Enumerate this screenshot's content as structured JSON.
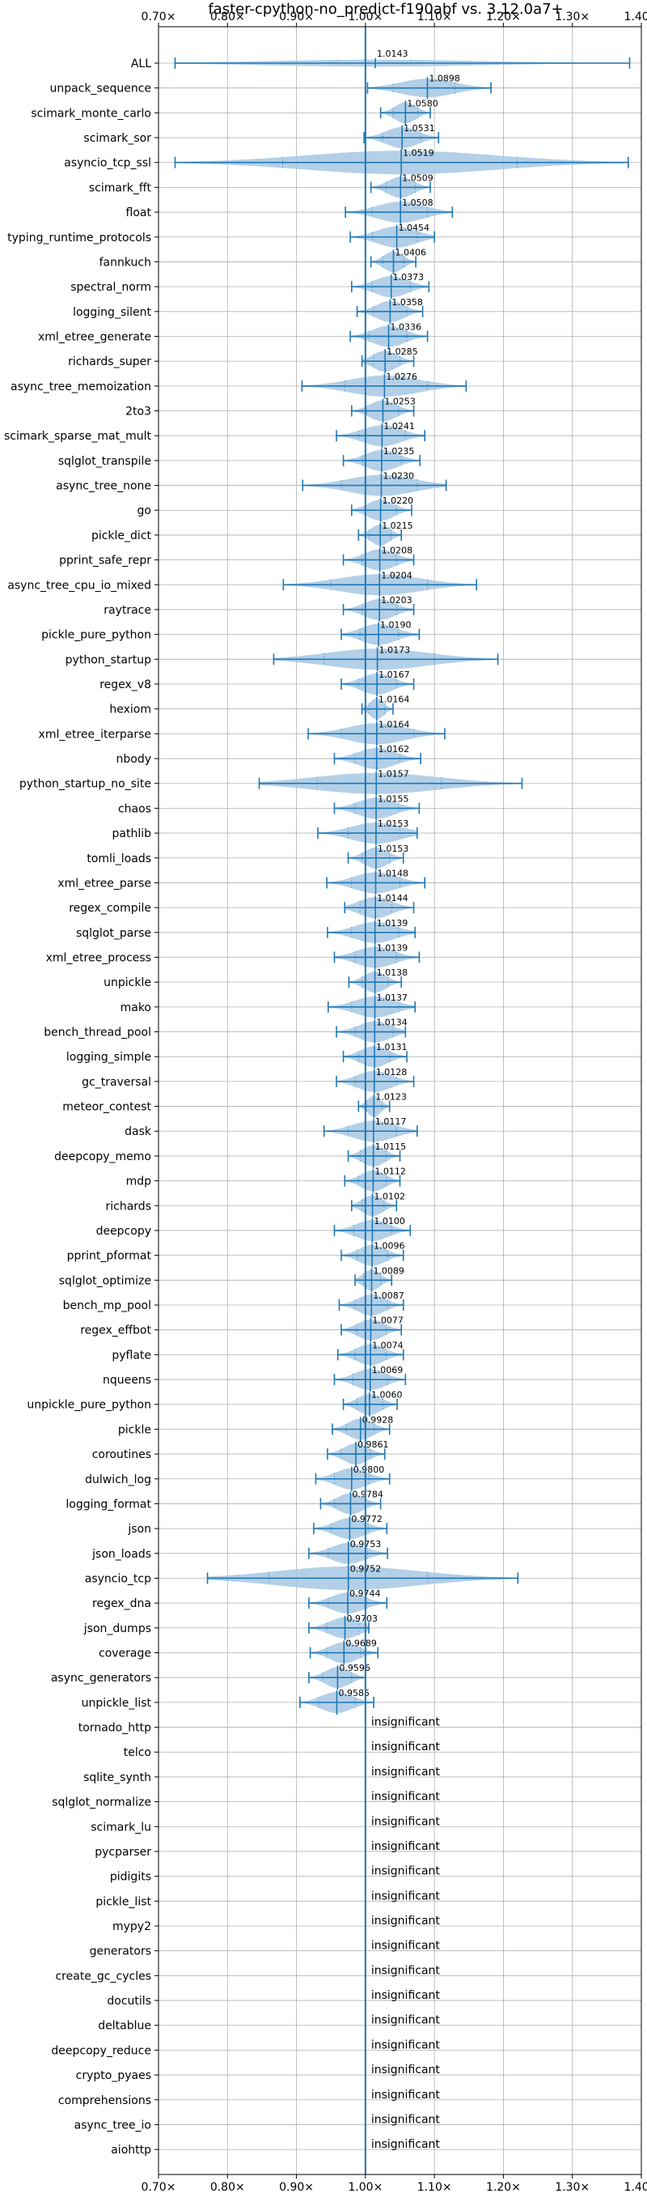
{
  "chart_data": {
    "type": "violin",
    "title": "faster-cpython-no_predict-f190abf vs. 3.12.0a7+",
    "xlim": [
      0.7,
      1.4
    ],
    "xticks": [
      0.7,
      0.8,
      0.9,
      1.0,
      1.1,
      1.2,
      1.3,
      1.4
    ],
    "xtick_labels": [
      "0.70×",
      "0.80×",
      "0.90×",
      "1.00×",
      "1.10×",
      "1.20×",
      "1.30×",
      "1.40×"
    ],
    "reference_line": 1.0,
    "grid": true,
    "insignificant_label": "insignificant",
    "color": "#1f77b4",
    "violin_color": "#a6c8e4",
    "benchmarks": [
      {
        "name": "ALL",
        "mean": 1.0143,
        "label": "1.0143",
        "min": 0.724,
        "max": 1.383,
        "q1": 0.96,
        "q3": 1.066,
        "width": 0.28
      },
      {
        "name": "unpack_sequence",
        "mean": 1.0898,
        "label": "1.0898",
        "min": 1.003,
        "max": 1.182,
        "q1": 1.04,
        "q3": 1.13,
        "width": 0.75
      },
      {
        "name": "scimark_monte_carlo",
        "mean": 1.058,
        "label": "1.0580",
        "min": 1.022,
        "max": 1.094,
        "q1": 1.04,
        "q3": 1.076,
        "width": 0.85
      },
      {
        "name": "scimark_sor",
        "mean": 1.0531,
        "label": "1.0531",
        "min": 0.998,
        "max": 1.106,
        "q1": 1.025,
        "q3": 1.08,
        "width": 0.85
      },
      {
        "name": "asyncio_tcp_ssl",
        "mean": 1.0519,
        "label": "1.0519",
        "min": 0.724,
        "max": 1.381,
        "q1": 0.88,
        "q3": 1.22,
        "width": 0.95
      },
      {
        "name": "scimark_fft",
        "mean": 1.0509,
        "label": "1.0509",
        "min": 1.008,
        "max": 1.094,
        "q1": 1.03,
        "q3": 1.072,
        "width": 0.85
      },
      {
        "name": "float",
        "mean": 1.0508,
        "label": "1.0508",
        "min": 0.971,
        "max": 1.126,
        "q1": 1.01,
        "q3": 1.09,
        "width": 0.85
      },
      {
        "name": "typing_runtime_protocols",
        "mean": 1.0454,
        "label": "1.0454",
        "min": 0.978,
        "max": 1.1,
        "q1": 1.01,
        "q3": 1.075,
        "width": 0.85
      },
      {
        "name": "fannkuch",
        "mean": 1.0406,
        "label": "1.0406",
        "min": 1.008,
        "max": 1.073,
        "q1": 1.025,
        "q3": 1.056,
        "width": 0.85
      },
      {
        "name": "spectral_norm",
        "mean": 1.0373,
        "label": "1.0373",
        "min": 0.98,
        "max": 1.092,
        "q1": 1.01,
        "q3": 1.065,
        "width": 0.85
      },
      {
        "name": "logging_silent",
        "mean": 1.0358,
        "label": "1.0358",
        "min": 0.988,
        "max": 1.083,
        "q1": 1.012,
        "q3": 1.06,
        "width": 0.85
      },
      {
        "name": "xml_etree_generate",
        "mean": 1.0336,
        "label": "1.0336",
        "min": 0.978,
        "max": 1.09,
        "q1": 1.005,
        "q3": 1.06,
        "width": 0.85
      },
      {
        "name": "richards_super",
        "mean": 1.0285,
        "label": "1.0285",
        "min": 0.995,
        "max": 1.07,
        "q1": 1.012,
        "q3": 1.05,
        "width": 0.85
      },
      {
        "name": "async_tree_memoization",
        "mean": 1.0276,
        "label": "1.0276",
        "min": 0.908,
        "max": 1.146,
        "q1": 0.97,
        "q3": 1.09,
        "width": 0.85
      },
      {
        "name": "2to3",
        "mean": 1.0253,
        "label": "1.0253",
        "min": 0.98,
        "max": 1.07,
        "q1": 1.002,
        "q3": 1.048,
        "width": 0.85
      },
      {
        "name": "scimark_sparse_mat_mult",
        "mean": 1.0241,
        "label": "1.0241",
        "min": 0.958,
        "max": 1.086,
        "q1": 0.99,
        "q3": 1.058,
        "width": 0.85
      },
      {
        "name": "sqlglot_transpile",
        "mean": 1.0235,
        "label": "1.0235",
        "min": 0.968,
        "max": 1.079,
        "q1": 0.996,
        "q3": 1.052,
        "width": 0.85
      },
      {
        "name": "async_tree_none",
        "mean": 1.023,
        "label": "1.0230",
        "min": 0.909,
        "max": 1.117,
        "q1": 0.965,
        "q3": 1.075,
        "width": 0.85
      },
      {
        "name": "go",
        "mean": 1.022,
        "label": "1.0220",
        "min": 0.98,
        "max": 1.067,
        "q1": 1.0,
        "q3": 1.045,
        "width": 0.85
      },
      {
        "name": "pickle_dict",
        "mean": 1.0215,
        "label": "1.0215",
        "min": 0.99,
        "max": 1.052,
        "q1": 1.006,
        "q3": 1.037,
        "width": 0.85
      },
      {
        "name": "pprint_safe_repr",
        "mean": 1.0208,
        "label": "1.0208",
        "min": 0.968,
        "max": 1.07,
        "q1": 0.995,
        "q3": 1.045,
        "width": 0.85
      },
      {
        "name": "async_tree_cpu_io_mixed",
        "mean": 1.0204,
        "label": "1.0204",
        "min": 0.881,
        "max": 1.161,
        "q1": 0.95,
        "q3": 1.09,
        "width": 0.85
      },
      {
        "name": "raytrace",
        "mean": 1.0203,
        "label": "1.0203",
        "min": 0.968,
        "max": 1.07,
        "q1": 0.995,
        "q3": 1.045,
        "width": 0.85
      },
      {
        "name": "pickle_pure_python",
        "mean": 1.019,
        "label": "1.0190",
        "min": 0.965,
        "max": 1.078,
        "q1": 0.992,
        "q3": 1.048,
        "width": 0.85
      },
      {
        "name": "python_startup",
        "mean": 1.0173,
        "label": "1.0173",
        "min": 0.867,
        "max": 1.192,
        "q1": 0.94,
        "q3": 1.1,
        "width": 0.85
      },
      {
        "name": "regex_v8",
        "mean": 1.0167,
        "label": "1.0167",
        "min": 0.965,
        "max": 1.07,
        "q1": 0.99,
        "q3": 1.045,
        "width": 0.85
      },
      {
        "name": "hexiom",
        "mean": 1.0164,
        "label": "1.0164",
        "min": 0.995,
        "max": 1.04,
        "q1": 1.006,
        "q3": 1.028,
        "width": 0.85
      },
      {
        "name": "xml_etree_iterparse",
        "mean": 1.0164,
        "label": "1.0164",
        "min": 0.917,
        "max": 1.115,
        "q1": 0.965,
        "q3": 1.07,
        "width": 0.85
      },
      {
        "name": "nbody",
        "mean": 1.0162,
        "label": "1.0162",
        "min": 0.955,
        "max": 1.08,
        "q1": 0.985,
        "q3": 1.05,
        "width": 0.85
      },
      {
        "name": "python_startup_no_site",
        "mean": 1.0157,
        "label": "1.0157",
        "min": 0.846,
        "max": 1.227,
        "q1": 0.93,
        "q3": 1.11,
        "width": 0.85
      },
      {
        "name": "chaos",
        "mean": 1.0155,
        "label": "1.0155",
        "min": 0.955,
        "max": 1.078,
        "q1": 0.985,
        "q3": 1.048,
        "width": 0.85
      },
      {
        "name": "pathlib",
        "mean": 1.0153,
        "label": "1.0153",
        "min": 0.931,
        "max": 1.075,
        "q1": 0.975,
        "q3": 1.05,
        "width": 0.85
      },
      {
        "name": "tomli_loads",
        "mean": 1.0153,
        "label": "1.0153",
        "min": 0.975,
        "max": 1.055,
        "q1": 0.995,
        "q3": 1.035,
        "width": 0.85
      },
      {
        "name": "xml_etree_parse",
        "mean": 1.0148,
        "label": "1.0148",
        "min": 0.944,
        "max": 1.086,
        "q1": 0.98,
        "q3": 1.05,
        "width": 0.85
      },
      {
        "name": "regex_compile",
        "mean": 1.0144,
        "label": "1.0144",
        "min": 0.97,
        "max": 1.07,
        "q1": 0.992,
        "q3": 1.038,
        "width": 0.85
      },
      {
        "name": "sqlglot_parse",
        "mean": 1.0139,
        "label": "1.0139",
        "min": 0.945,
        "max": 1.072,
        "q1": 0.98,
        "q3": 1.048,
        "width": 0.85
      },
      {
        "name": "xml_etree_process",
        "mean": 1.0139,
        "label": "1.0139",
        "min": 0.955,
        "max": 1.078,
        "q1": 0.985,
        "q3": 1.045,
        "width": 0.85
      },
      {
        "name": "unpickle",
        "mean": 1.0138,
        "label": "1.0138",
        "min": 0.976,
        "max": 1.052,
        "q1": 0.995,
        "q3": 1.033,
        "width": 0.85
      },
      {
        "name": "mako",
        "mean": 1.0137,
        "label": "1.0137",
        "min": 0.946,
        "max": 1.072,
        "q1": 0.98,
        "q3": 1.048,
        "width": 0.85
      },
      {
        "name": "bench_thread_pool",
        "mean": 1.0134,
        "label": "1.0134",
        "min": 0.958,
        "max": 1.058,
        "q1": 0.985,
        "q3": 1.04,
        "width": 0.85
      },
      {
        "name": "logging_simple",
        "mean": 1.0131,
        "label": "1.0131",
        "min": 0.968,
        "max": 1.06,
        "q1": 0.99,
        "q3": 1.035,
        "width": 0.85
      },
      {
        "name": "gc_traversal",
        "mean": 1.0128,
        "label": "1.0128",
        "min": 0.958,
        "max": 1.07,
        "q1": 0.985,
        "q3": 1.045,
        "width": 0.85
      },
      {
        "name": "meteor_contest",
        "mean": 1.0123,
        "label": "1.0123",
        "min": 0.99,
        "max": 1.035,
        "q1": 1.002,
        "q3": 1.024,
        "width": 0.85
      },
      {
        "name": "dask",
        "mean": 1.0117,
        "label": "1.0117",
        "min": 0.94,
        "max": 1.075,
        "q1": 0.975,
        "q3": 1.045,
        "width": 0.85
      },
      {
        "name": "deepcopy_memo",
        "mean": 1.0115,
        "label": "1.0115",
        "min": 0.975,
        "max": 1.05,
        "q1": 0.993,
        "q3": 1.03,
        "width": 0.85
      },
      {
        "name": "mdp",
        "mean": 1.0112,
        "label": "1.0112",
        "min": 0.97,
        "max": 1.05,
        "q1": 0.99,
        "q3": 1.03,
        "width": 0.85
      },
      {
        "name": "richards",
        "mean": 1.0102,
        "label": "1.0102",
        "min": 0.98,
        "max": 1.045,
        "q1": 0.995,
        "q3": 1.027,
        "width": 0.85
      },
      {
        "name": "deepcopy",
        "mean": 1.01,
        "label": "1.0100",
        "min": 0.955,
        "max": 1.065,
        "q1": 0.983,
        "q3": 1.038,
        "width": 0.85
      },
      {
        "name": "pprint_pformat",
        "mean": 1.0096,
        "label": "1.0096",
        "min": 0.965,
        "max": 1.055,
        "q1": 0.988,
        "q3": 1.032,
        "width": 0.85
      },
      {
        "name": "sqlglot_optimize",
        "mean": 1.0089,
        "label": "1.0089",
        "min": 0.985,
        "max": 1.038,
        "q1": 0.997,
        "q3": 1.022,
        "width": 0.85
      },
      {
        "name": "bench_mp_pool",
        "mean": 1.0087,
        "label": "1.0087",
        "min": 0.962,
        "max": 1.055,
        "q1": 0.985,
        "q3": 1.032,
        "width": 0.85
      },
      {
        "name": "regex_effbot",
        "mean": 1.0077,
        "label": "1.0077",
        "min": 0.965,
        "max": 1.052,
        "q1": 0.987,
        "q3": 1.03,
        "width": 0.85
      },
      {
        "name": "pyflate",
        "mean": 1.0074,
        "label": "1.0074",
        "min": 0.96,
        "max": 1.055,
        "q1": 0.985,
        "q3": 1.03,
        "width": 0.85
      },
      {
        "name": "nqueens",
        "mean": 1.0069,
        "label": "1.0069",
        "min": 0.955,
        "max": 1.058,
        "q1": 0.982,
        "q3": 1.032,
        "width": 0.85
      },
      {
        "name": "unpickle_pure_python",
        "mean": 1.006,
        "label": "1.0060",
        "min": 0.968,
        "max": 1.046,
        "q1": 0.988,
        "q3": 1.025,
        "width": 0.85
      },
      {
        "name": "pickle",
        "mean": 0.9928,
        "label": "0.9928",
        "min": 0.952,
        "max": 1.035,
        "q1": 0.972,
        "q3": 1.013,
        "width": 0.85
      },
      {
        "name": "coroutines",
        "mean": 0.9861,
        "label": "0.9861",
        "min": 0.945,
        "max": 1.028,
        "q1": 0.965,
        "q3": 1.007,
        "width": 0.85
      },
      {
        "name": "dulwich_log",
        "mean": 0.98,
        "label": "0.9800",
        "min": 0.928,
        "max": 1.035,
        "q1": 0.955,
        "q3": 1.005,
        "width": 0.85
      },
      {
        "name": "logging_format",
        "mean": 0.9784,
        "label": "0.9784",
        "min": 0.935,
        "max": 1.022,
        "q1": 0.955,
        "q3": 1.0,
        "width": 0.85
      },
      {
        "name": "json",
        "mean": 0.9772,
        "label": "0.9772",
        "min": 0.925,
        "max": 1.031,
        "q1": 0.95,
        "q3": 1.004,
        "width": 0.85
      },
      {
        "name": "json_loads",
        "mean": 0.9753,
        "label": "0.9753",
        "min": 0.918,
        "max": 1.032,
        "q1": 0.946,
        "q3": 1.003,
        "width": 0.85
      },
      {
        "name": "asyncio_tcp",
        "mean": 0.9752,
        "label": "0.9752",
        "min": 0.771,
        "max": 1.221,
        "q1": 0.86,
        "q3": 1.09,
        "width": 0.95
      },
      {
        "name": "regex_dna",
        "mean": 0.9744,
        "label": "0.9744",
        "min": 0.918,
        "max": 1.031,
        "q1": 0.946,
        "q3": 1.002,
        "width": 0.85
      },
      {
        "name": "json_dumps",
        "mean": 0.9703,
        "label": "0.9703",
        "min": 0.918,
        "max": 1.005,
        "q1": 0.944,
        "q3": 0.99,
        "width": 0.85
      },
      {
        "name": "coverage",
        "mean": 0.9689,
        "label": "0.9689",
        "min": 0.92,
        "max": 1.018,
        "q1": 0.944,
        "q3": 0.993,
        "width": 0.85
      },
      {
        "name": "async_generators",
        "mean": 0.9596,
        "label": "0.9596",
        "min": 0.918,
        "max": 1.0,
        "q1": 0.938,
        "q3": 0.98,
        "width": 0.85
      },
      {
        "name": "unpickle_list",
        "mean": 0.9585,
        "label": "0.9585",
        "min": 0.905,
        "max": 1.012,
        "q1": 0.932,
        "q3": 0.985,
        "width": 0.85
      },
      {
        "name": "tornado_http",
        "insignificant": true
      },
      {
        "name": "telco",
        "insignificant": true
      },
      {
        "name": "sqlite_synth",
        "insignificant": true
      },
      {
        "name": "sqlglot_normalize",
        "insignificant": true
      },
      {
        "name": "scimark_lu",
        "insignificant": true
      },
      {
        "name": "pycparser",
        "insignificant": true
      },
      {
        "name": "pidigits",
        "insignificant": true
      },
      {
        "name": "pickle_list",
        "insignificant": true
      },
      {
        "name": "mypy2",
        "insignificant": true
      },
      {
        "name": "generators",
        "insignificant": true
      },
      {
        "name": "create_gc_cycles",
        "insignificant": true
      },
      {
        "name": "docutils",
        "insignificant": true
      },
      {
        "name": "deltablue",
        "insignificant": true
      },
      {
        "name": "deepcopy_reduce",
        "insignificant": true
      },
      {
        "name": "crypto_pyaes",
        "insignificant": true
      },
      {
        "name": "comprehensions",
        "insignificant": true
      },
      {
        "name": "async_tree_io",
        "insignificant": true
      },
      {
        "name": "aiohttp",
        "insignificant": true
      }
    ]
  }
}
